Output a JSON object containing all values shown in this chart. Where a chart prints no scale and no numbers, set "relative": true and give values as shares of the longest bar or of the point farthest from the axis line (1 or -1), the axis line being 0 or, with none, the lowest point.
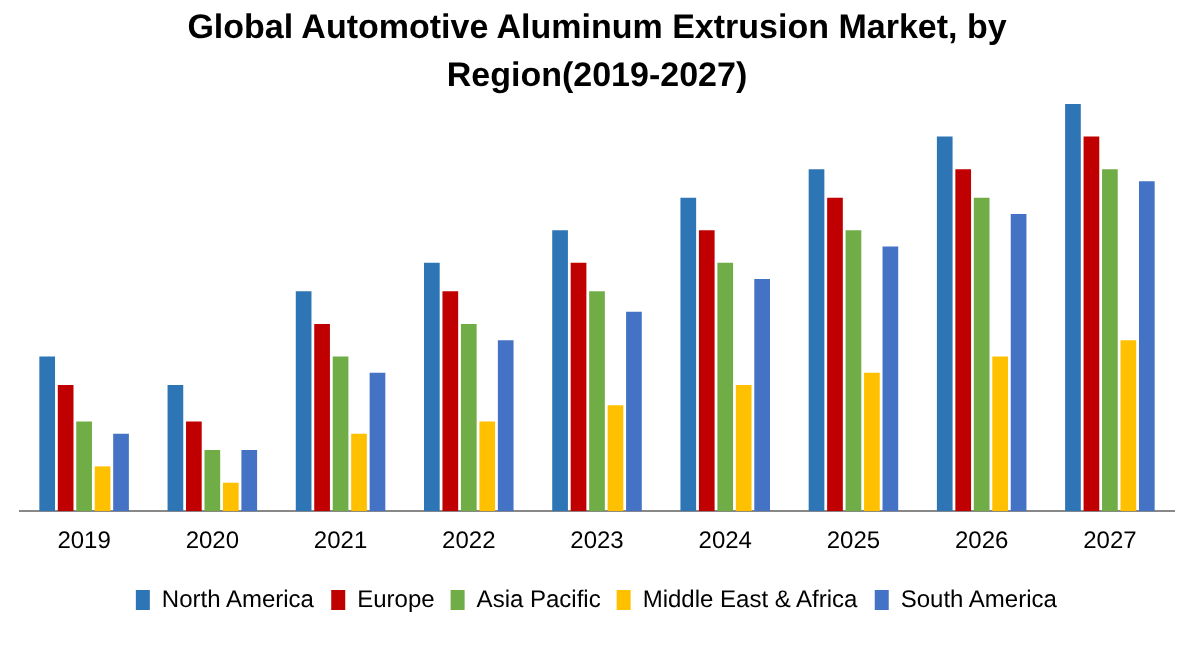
{
  "chart_data": {
    "type": "bar",
    "title": "Global Automotive Aluminum Extrusion Market, by Region(2019-2027)",
    "relative": true,
    "legend": "bottom",
    "grid": false,
    "categories": [
      "2019",
      "2020",
      "2021",
      "2022",
      "2023",
      "2024",
      "2025",
      "2026",
      "2027"
    ],
    "series": [
      {
        "name": "North America",
        "color": "#2e75b6",
        "values": [
          0.38,
          0.31,
          0.54,
          0.61,
          0.69,
          0.77,
          0.84,
          0.92,
          1
        ]
      },
      {
        "name": "Europe",
        "color": "#c00000",
        "values": [
          0.31,
          0.22,
          0.46,
          0.54,
          0.61,
          0.69,
          0.77,
          0.84,
          0.92
        ]
      },
      {
        "name": "Asia Pacific",
        "color": "#70ad47",
        "values": [
          0.22,
          0.15,
          0.38,
          0.46,
          0.54,
          0.61,
          0.69,
          0.77,
          0.84
        ]
      },
      {
        "name": "Middle East & Africa",
        "color": "#ffc000",
        "values": [
          0.11,
          0.07,
          0.19,
          0.22,
          0.26,
          0.31,
          0.34,
          0.38,
          0.42
        ]
      },
      {
        "name": "South America",
        "color": "#4472c4",
        "values": [
          0.19,
          0.15,
          0.34,
          0.42,
          0.49,
          0.57,
          0.65,
          0.73,
          0.81
        ]
      }
    ]
  }
}
